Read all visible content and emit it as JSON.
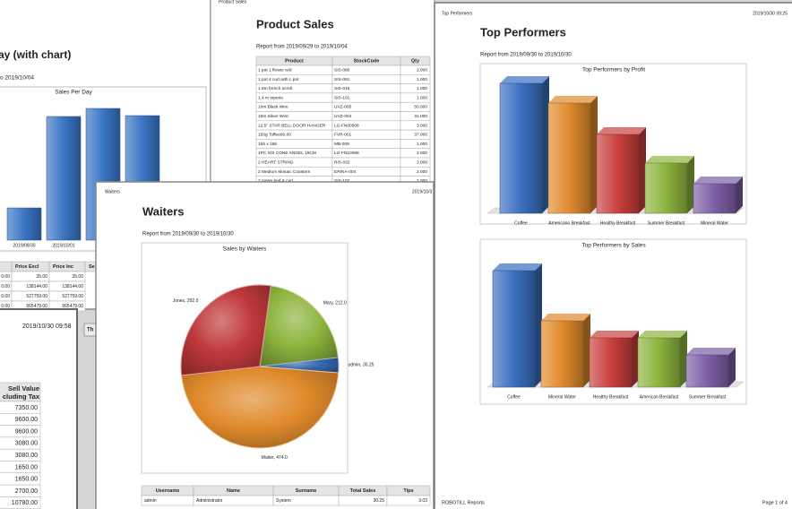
{
  "sales_by_day": {
    "title": "ay (with chart)",
    "subtitle": "o 2019/10/04",
    "chart": {
      "type": "bar",
      "title": "Sales Per Day",
      "categories": [
        "2019/09/30",
        "2019/10/01",
        null,
        null
      ],
      "values": [
        36,
        138,
        147,
        139
      ],
      "ylim": [
        0,
        160
      ],
      "color": "#3a75c4"
    },
    "table": {
      "headers": [
        "Price Excl",
        "Price Inc",
        "Se"
      ],
      "rows": [
        [
          "0.00",
          "35.00",
          "35.00"
        ],
        [
          "0.00",
          "138144.00",
          "138144.00"
        ],
        [
          "0.00",
          "527759.00",
          "527759.00"
        ],
        [
          "0.00",
          "565479.00",
          "565479.00"
        ]
      ]
    }
  },
  "other_report": {
    "timestamp": "2019/10/30 09:58",
    "tab": "Th",
    "table": {
      "header": [
        "Sell Value",
        "cluding Tax"
      ],
      "values": [
        "7350.00",
        "9600.00",
        "9600.00",
        "3080.00",
        "3080.00",
        "1650.00",
        "1650.00",
        "2700.00",
        "10780.00"
      ]
    }
  },
  "product_sales": {
    "page_label": "Product Sales",
    "title": "Product Sales",
    "subtitle": "Report from 2019/09/29 to 2019/10/04",
    "table": {
      "headers": [
        "Product",
        "StockCode",
        "Qty"
      ],
      "rows": [
        [
          "1 pot 1 flower w/d",
          "SIS-080",
          "2.000"
        ],
        [
          "1 pot 4 curl with L pot",
          "SIS-091",
          "1.000"
        ],
        [
          "1.8m french scroll",
          "SIS-016",
          "1.000"
        ],
        [
          "1.4 m toperie",
          "SIS-101",
          "1.000"
        ],
        [
          "10m Black Wire",
          "UVZ-005",
          "50.000"
        ],
        [
          "10m Silver Wire",
          "UVZ-004",
          "31.000"
        ],
        [
          "12.5\" STAR BELL DOOR HANGER",
          "LG-FN00508",
          "3.000"
        ],
        [
          "150g Toffee60.00",
          "FVR-001",
          "37.000"
        ],
        [
          "165 x 165",
          "MB-009",
          "1.000"
        ],
        [
          "1PC S/S CONE ANGEL 16CM",
          "LG-FN10068",
          "2.000"
        ],
        [
          "2 HEART STRING",
          "RIS-032",
          "2.000"
        ],
        [
          "2 Medium Mosaic Coasters",
          "ERINA-004",
          "2.000"
        ],
        [
          "2 meter leaf & curl",
          "SIS-107",
          "2.000"
        ]
      ]
    }
  },
  "waiters": {
    "page_label": "Waiters",
    "date": "2019/10/3",
    "title": "Waiters",
    "subtitle": "Report from 2019/09/30 to 2019/10/30",
    "chart": {
      "type": "pie",
      "title": "Sales by Waiters",
      "values": [
        212,
        30.25,
        474,
        292
      ],
      "value_labels": [
        "Mary, 212.0",
        "admin, 30.25",
        "Waiter, 474.0",
        "Jones, 292.0"
      ],
      "colors": [
        "#8db43e",
        "#3566ad",
        "#e08a2c",
        "#c0393b"
      ]
    },
    "table": {
      "headers": [
        "Username",
        "Name",
        "Surname",
        "Total Sales",
        "Tips"
      ],
      "rows": [
        [
          "admin",
          "Administrator",
          "System",
          "30.25",
          "3.03"
        ]
      ]
    }
  },
  "top_performers": {
    "page_label": "Top Performers",
    "date": "2019/10/30 09:25",
    "title": "Top Performers",
    "subtitle": "Report from 2019/09/30 to 2019/10/30",
    "charts": [
      {
        "type": "bar",
        "title": "Top Performers by Profit",
        "categories": [
          "Coffee",
          "Americano Breakfast",
          "Healthy Breakfast",
          "Summer Breakfast",
          "Mineral Water"
        ],
        "values": [
          145,
          123,
          88,
          56,
          33
        ],
        "ylim": [
          0,
          150
        ],
        "colors": [
          "#3a6fc0",
          "#e08a2c",
          "#c9403e",
          "#8db43e",
          "#7d5fa6"
        ]
      },
      {
        "type": "bar",
        "title": "Top Performers by Sales",
        "categories": [
          "Coffee",
          "Mineral Water",
          "Healthy Breakfast",
          "American Breakfast",
          "Summer Breakfast"
        ],
        "values": [
          130,
          74,
          55,
          55,
          36
        ],
        "ylim": [
          0,
          150
        ],
        "colors": [
          "#3a6fc0",
          "#e08a2c",
          "#c9403e",
          "#8db43e",
          "#7d5fa6"
        ]
      }
    ],
    "footer": "ROBOTILL Reports",
    "page": "Page 1 of 4"
  }
}
